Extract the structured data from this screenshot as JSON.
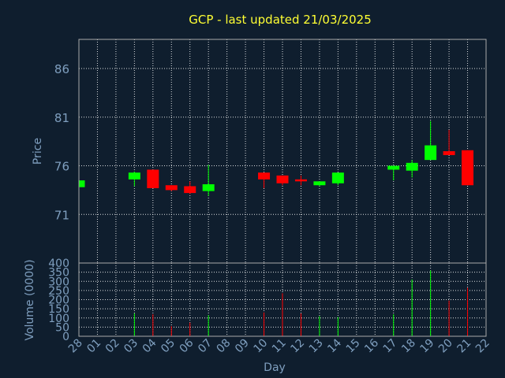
{
  "chart_data": [
    {
      "type": "candlestick",
      "title": "GCP - last updated 21/03/2025",
      "ylabel": "Price",
      "ylim": [
        66,
        89
      ],
      "yticks": [
        71,
        76,
        81,
        86
      ],
      "categories": [
        "28",
        "01",
        "02",
        "03",
        "04",
        "05",
        "06",
        "07",
        "08",
        "09",
        "10",
        "11",
        "12",
        "13",
        "14",
        "15",
        "16",
        "17",
        "18",
        "19",
        "20",
        "21",
        "22"
      ],
      "grid": true,
      "colors": {
        "up": "#00ff00",
        "down": "#ff0000",
        "background": "#0f1e2e",
        "text": "#7f9fbf",
        "grid": "#ffffff",
        "title": "#ffff33"
      },
      "candles": [
        {
          "day": "28",
          "open": 73.8,
          "close": 74.5,
          "high": 74.5,
          "low": 73.8
        },
        {
          "day": "03",
          "open": 74.6,
          "close": 75.3,
          "high": 75.4,
          "low": 73.9
        },
        {
          "day": "04",
          "open": 75.6,
          "close": 73.7,
          "high": 75.6,
          "low": 73.7
        },
        {
          "day": "05",
          "open": 74.0,
          "close": 73.5,
          "high": 74.0,
          "low": 73.4
        },
        {
          "day": "06",
          "open": 73.9,
          "close": 73.2,
          "high": 74.4,
          "low": 73.1
        },
        {
          "day": "07",
          "open": 73.4,
          "close": 74.1,
          "high": 76.1,
          "low": 72.9
        },
        {
          "day": "10",
          "open": 75.3,
          "close": 74.6,
          "high": 75.3,
          "low": 73.7
        },
        {
          "day": "11",
          "open": 75.0,
          "close": 74.2,
          "high": 75.0,
          "low": 74.0
        },
        {
          "day": "12",
          "open": 74.6,
          "close": 74.4,
          "high": 75.0,
          "low": 74.0
        },
        {
          "day": "13",
          "open": 74.0,
          "close": 74.4,
          "high": 74.4,
          "low": 73.9
        },
        {
          "day": "14",
          "open": 74.2,
          "close": 75.3,
          "high": 75.3,
          "low": 74.0
        },
        {
          "day": "17",
          "open": 75.6,
          "close": 76.0,
          "high": 76.0,
          "low": 74.5
        },
        {
          "day": "18",
          "open": 75.5,
          "close": 76.3,
          "high": 76.6,
          "low": 74.8
        },
        {
          "day": "19",
          "open": 76.6,
          "close": 78.1,
          "high": 80.6,
          "low": 76.6
        },
        {
          "day": "20",
          "open": 77.5,
          "close": 77.1,
          "high": 79.7,
          "low": 77.1
        },
        {
          "day": "21",
          "open": 77.6,
          "close": 74.0,
          "high": 77.6,
          "low": 74.0
        }
      ]
    },
    {
      "type": "bar",
      "xlabel": "Day",
      "ylabel": "Volume (0000)",
      "ylim": [
        0,
        400
      ],
      "yticks": [
        0,
        50,
        100,
        150,
        200,
        250,
        300,
        350,
        400
      ],
      "categories": [
        "28",
        "01",
        "02",
        "03",
        "04",
        "05",
        "06",
        "07",
        "08",
        "09",
        "10",
        "11",
        "12",
        "13",
        "14",
        "15",
        "16",
        "17",
        "18",
        "19",
        "20",
        "21",
        "22"
      ],
      "bars": [
        {
          "day": "03",
          "value": 125,
          "direction": "up"
        },
        {
          "day": "04",
          "value": 120,
          "direction": "down"
        },
        {
          "day": "05",
          "value": 55,
          "direction": "down"
        },
        {
          "day": "06",
          "value": 75,
          "direction": "down"
        },
        {
          "day": "07",
          "value": 115,
          "direction": "up"
        },
        {
          "day": "10",
          "value": 130,
          "direction": "down"
        },
        {
          "day": "11",
          "value": 235,
          "direction": "down"
        },
        {
          "day": "12",
          "value": 125,
          "direction": "down"
        },
        {
          "day": "13",
          "value": 110,
          "direction": "up"
        },
        {
          "day": "14",
          "value": 105,
          "direction": "up"
        },
        {
          "day": "17",
          "value": 120,
          "direction": "up"
        },
        {
          "day": "18",
          "value": 310,
          "direction": "up"
        },
        {
          "day": "19",
          "value": 360,
          "direction": "up"
        },
        {
          "day": "20",
          "value": 195,
          "direction": "down"
        },
        {
          "day": "21",
          "value": 265,
          "direction": "down"
        }
      ]
    }
  ]
}
